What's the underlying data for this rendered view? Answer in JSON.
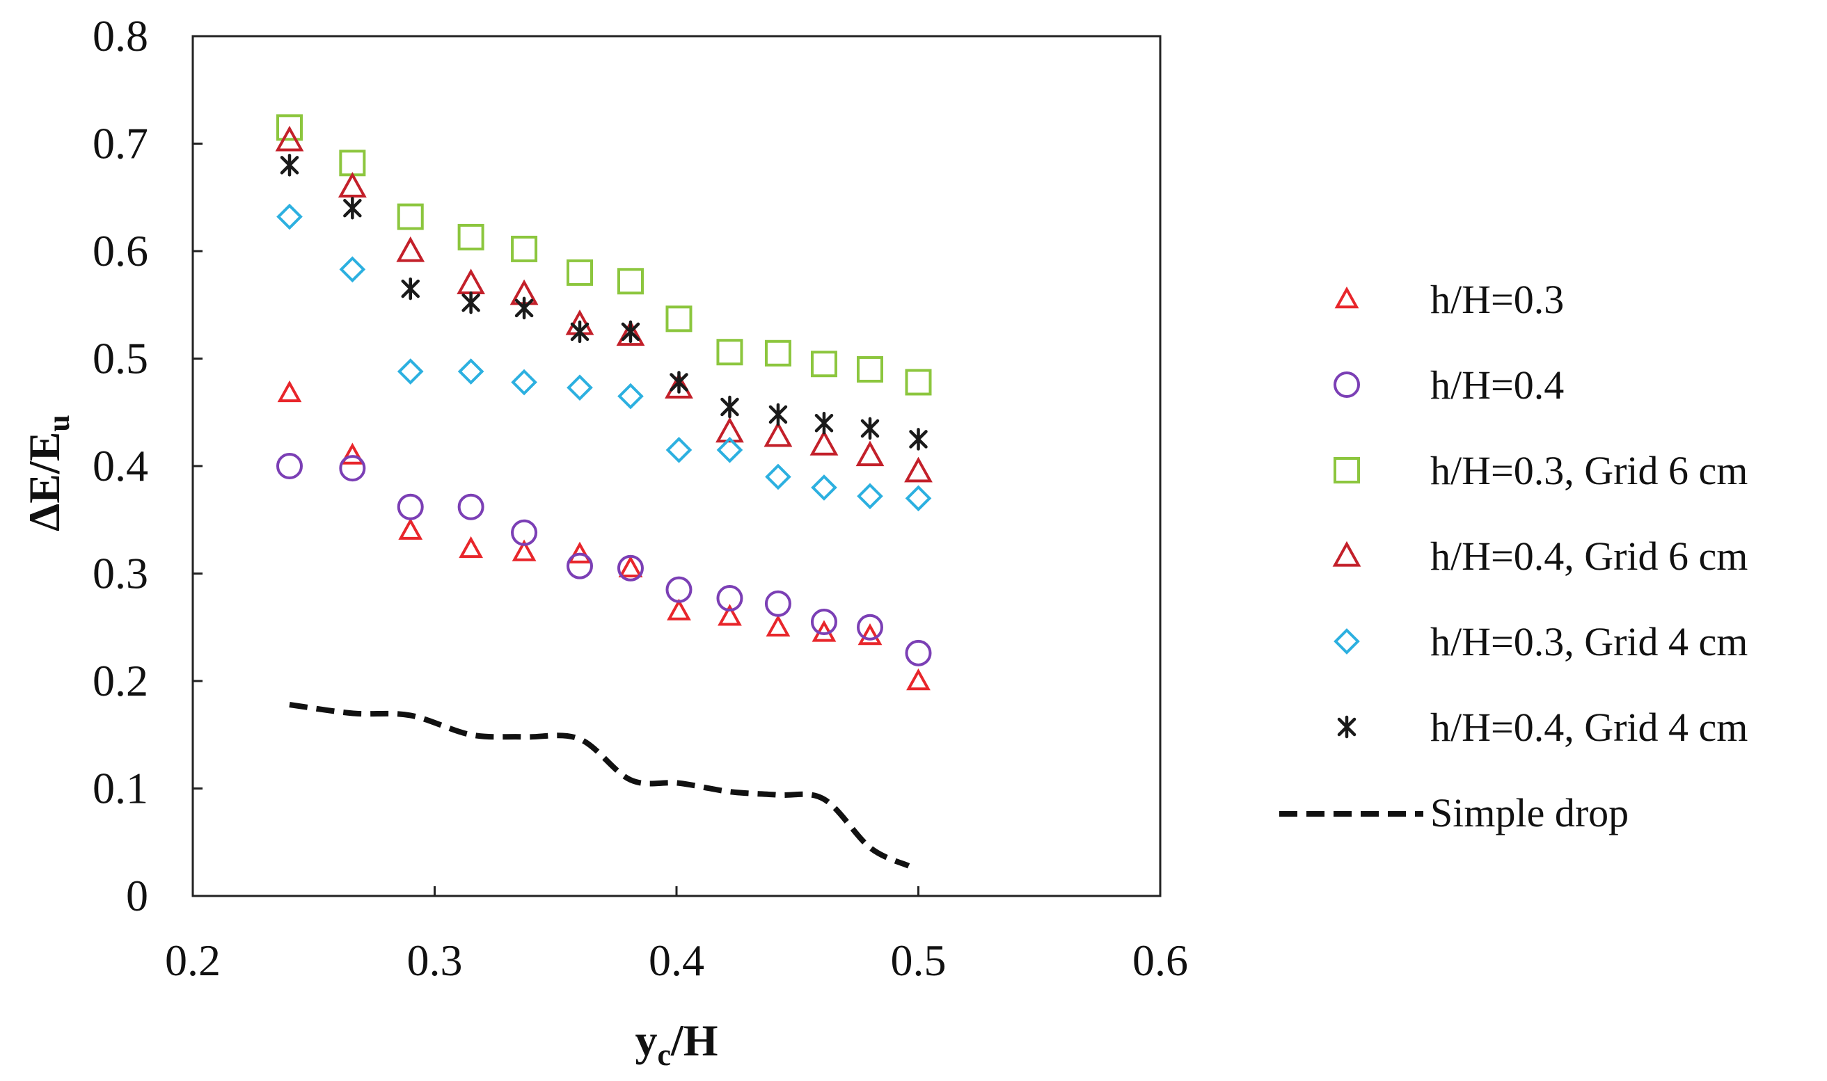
{
  "chart_data": {
    "type": "scatter",
    "xlabel": {
      "main": "y",
      "sub": "c",
      "tail": "/H"
    },
    "ylabel": {
      "main": "ΔE/E",
      "sub": "u"
    },
    "xlim": [
      0.2,
      0.6
    ],
    "ylim": [
      0,
      0.8
    ],
    "x_ticks": [
      "0.2",
      "0.3",
      "0.4",
      "0.5",
      "0.6"
    ],
    "y_ticks": [
      "0",
      "0.1",
      "0.2",
      "0.3",
      "0.4",
      "0.5",
      "0.6",
      "0.7",
      "0.8"
    ],
    "grid": false,
    "legend_position": "right",
    "series": [
      {
        "name": "h/H=0.3",
        "marker": "triangle-small",
        "color": "#e8262b",
        "x": [
          0.24,
          0.266,
          0.29,
          0.315,
          0.337,
          0.36,
          0.381,
          0.401,
          0.422,
          0.442,
          0.461,
          0.48,
          0.5
        ],
        "y": [
          0.468,
          0.41,
          0.34,
          0.323,
          0.32,
          0.318,
          0.305,
          0.265,
          0.26,
          0.25,
          0.245,
          0.242,
          0.2
        ]
      },
      {
        "name": "h/H=0.4",
        "marker": "circle",
        "color": "#7b3fb5",
        "x": [
          0.24,
          0.266,
          0.29,
          0.315,
          0.337,
          0.36,
          0.381,
          0.401,
          0.422,
          0.442,
          0.461,
          0.48,
          0.5
        ],
        "y": [
          0.4,
          0.398,
          0.362,
          0.362,
          0.338,
          0.307,
          0.305,
          0.285,
          0.277,
          0.272,
          0.255,
          0.25,
          0.226
        ]
      },
      {
        "name": "h/H=0.3, Grid 6 cm",
        "marker": "square",
        "color": "#8cc63e",
        "x": [
          0.24,
          0.266,
          0.29,
          0.315,
          0.337,
          0.36,
          0.381,
          0.401,
          0.422,
          0.442,
          0.461,
          0.48,
          0.5
        ],
        "y": [
          0.715,
          0.682,
          0.632,
          0.613,
          0.602,
          0.58,
          0.572,
          0.537,
          0.506,
          0.505,
          0.495,
          0.49,
          0.478
        ]
      },
      {
        "name": "h/H=0.4, Grid 6 cm",
        "marker": "triangle",
        "color": "#c3202a",
        "x": [
          0.24,
          0.266,
          0.29,
          0.315,
          0.337,
          0.36,
          0.381,
          0.401,
          0.422,
          0.442,
          0.461,
          0.48,
          0.5
        ],
        "y": [
          0.703,
          0.66,
          0.6,
          0.57,
          0.56,
          0.532,
          0.522,
          0.473,
          0.432,
          0.428,
          0.42,
          0.41,
          0.395
        ]
      },
      {
        "name": "h/H=0.3, Grid 4 cm",
        "marker": "diamond",
        "color": "#2cb0e0",
        "x": [
          0.24,
          0.266,
          0.29,
          0.315,
          0.337,
          0.36,
          0.381,
          0.401,
          0.422,
          0.442,
          0.461,
          0.48,
          0.5
        ],
        "y": [
          0.632,
          0.583,
          0.488,
          0.488,
          0.478,
          0.473,
          0.465,
          0.415,
          0.415,
          0.39,
          0.38,
          0.372,
          0.37
        ]
      },
      {
        "name": "h/H=0.4, Grid 4 cm",
        "marker": "asterisk",
        "color": "#1a1a1a",
        "x": [
          0.24,
          0.266,
          0.29,
          0.315,
          0.337,
          0.36,
          0.381,
          0.401,
          0.422,
          0.442,
          0.461,
          0.48,
          0.5
        ],
        "y": [
          0.68,
          0.64,
          0.565,
          0.552,
          0.547,
          0.525,
          0.525,
          0.478,
          0.455,
          0.448,
          0.44,
          0.435,
          0.425
        ]
      },
      {
        "name": "Simple drop",
        "marker": "dashed-line",
        "color": "#111111",
        "x": [
          0.24,
          0.266,
          0.29,
          0.315,
          0.337,
          0.36,
          0.381,
          0.401,
          0.422,
          0.442,
          0.461,
          0.48,
          0.496
        ],
        "y": [
          0.178,
          0.17,
          0.168,
          0.15,
          0.148,
          0.146,
          0.108,
          0.105,
          0.097,
          0.094,
          0.09,
          0.045,
          0.028
        ]
      }
    ]
  }
}
